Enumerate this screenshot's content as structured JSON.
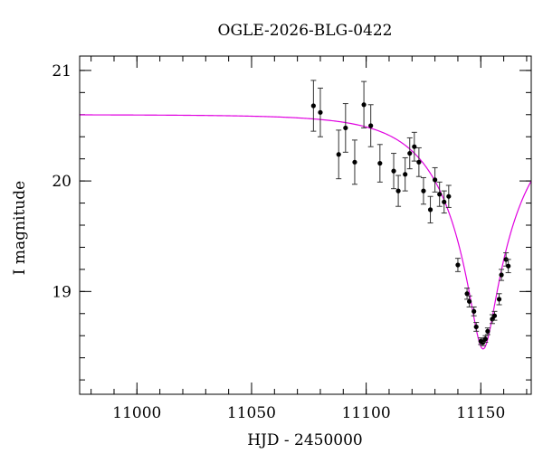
{
  "chart_data": {
    "type": "scatter",
    "title": "OGLE-2026-BLG-0422",
    "xlabel": "HJD - 2450000",
    "ylabel": "I magnitude",
    "xlim": [
      10975,
      11172
    ],
    "ylim": [
      21.13,
      18.07
    ],
    "y_inverted": true,
    "grid": false,
    "x_ticks": [
      11000,
      11050,
      11100,
      11150
    ],
    "x_tick_labels": [
      "11000",
      "11050",
      "11100",
      "11150"
    ],
    "y_ticks": [
      19,
      20,
      21
    ],
    "y_tick_labels": [
      "19",
      "20",
      "21"
    ],
    "x_minor_step": 10,
    "y_minor_step": 0.2,
    "colors": {
      "model": "#e000e0",
      "points": "#000000",
      "axes": "#000000"
    },
    "model_curve": {
      "kind": "point-lens",
      "t0": 11151,
      "u0": 0.16,
      "tE": 30,
      "baseline_mag": 20.6,
      "peak_mag": 18.48
    },
    "series": [
      {
        "x": [
          11077,
          11080,
          11088,
          11091,
          11095,
          11099,
          11102,
          11106,
          11112,
          11114,
          11117,
          11119,
          11121,
          11123,
          11125,
          11128,
          11130,
          11132,
          11134,
          11136,
          11140,
          11144,
          11145,
          11147,
          11148,
          11150,
          11151,
          11152,
          11153,
          11155,
          11156,
          11158,
          11159,
          11161,
          11162
        ],
        "y": [
          20.68,
          20.62,
          20.24,
          20.48,
          20.17,
          20.69,
          20.5,
          20.16,
          20.09,
          19.91,
          20.06,
          20.25,
          20.31,
          20.17,
          19.91,
          19.74,
          20.01,
          19.88,
          19.81,
          19.86,
          19.24,
          18.98,
          18.91,
          18.82,
          18.68,
          18.55,
          18.54,
          18.57,
          18.64,
          18.75,
          18.78,
          18.93,
          19.15,
          19.29,
          19.23
        ],
        "yerr": [
          0.23,
          0.22,
          0.22,
          0.22,
          0.2,
          0.21,
          0.19,
          0.17,
          0.16,
          0.14,
          0.15,
          0.14,
          0.13,
          0.13,
          0.12,
          0.12,
          0.11,
          0.11,
          0.1,
          0.1,
          0.06,
          0.05,
          0.05,
          0.04,
          0.04,
          0.03,
          0.03,
          0.03,
          0.03,
          0.04,
          0.04,
          0.05,
          0.05,
          0.06,
          0.06
        ]
      }
    ]
  }
}
